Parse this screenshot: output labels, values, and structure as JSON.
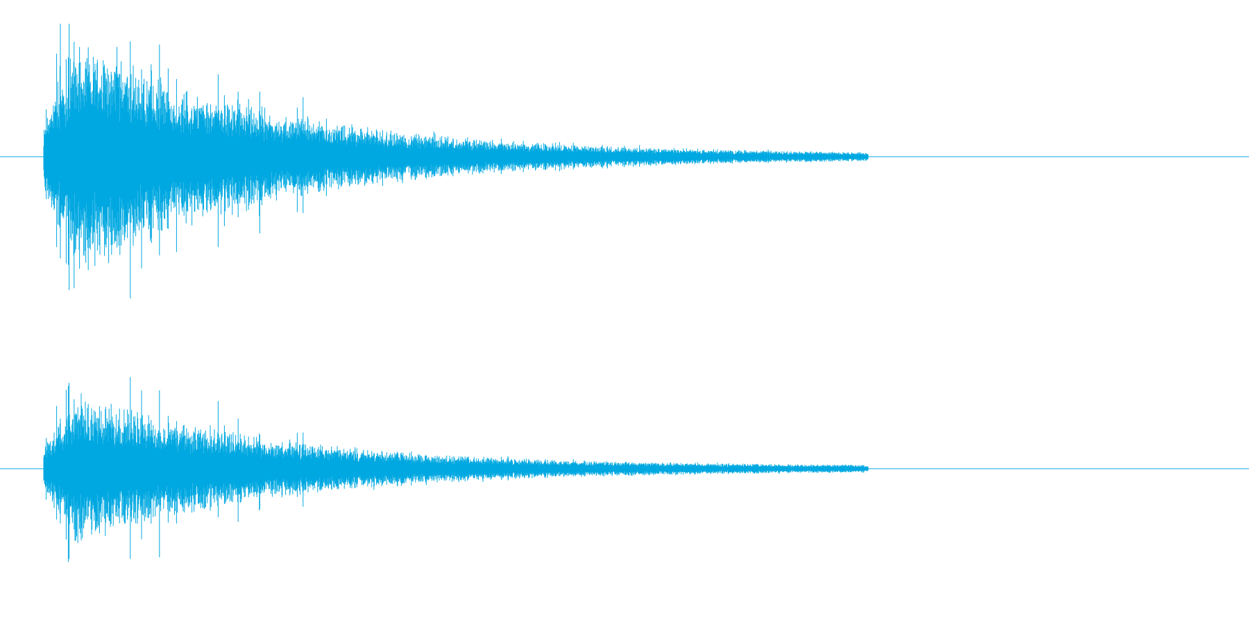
{
  "waveform": {
    "color": "#00a8e1",
    "channels": [
      {
        "id": "channel-1",
        "attack_fraction": 0.035,
        "sound_end_fraction": 0.695,
        "peak_amplitude": 0.92,
        "tail_amplitude": 0.02
      },
      {
        "id": "channel-2",
        "attack_fraction": 0.035,
        "sound_end_fraction": 0.695,
        "peak_amplitude": 0.58,
        "tail_amplitude": 0.02
      }
    ]
  }
}
